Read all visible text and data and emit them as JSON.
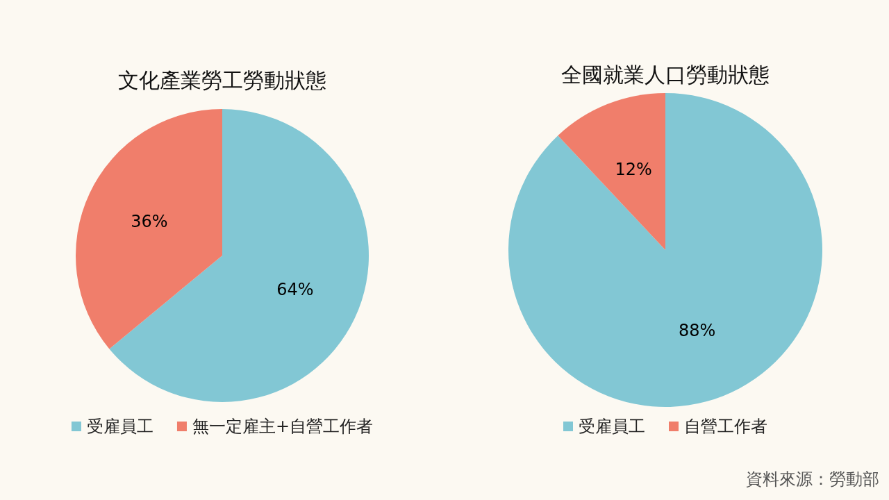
{
  "chart_data": [
    {
      "type": "pie",
      "title": "文化產業勞工勞動狀態",
      "categories": [
        "受雇員工",
        "無一定雇主+自營工作者"
      ],
      "values": [
        64,
        36
      ],
      "value_labels": [
        "64%",
        "36%"
      ],
      "colors": [
        "#82c7d4",
        "#f07e6b"
      ],
      "legend": "bottom"
    },
    {
      "type": "pie",
      "title": "全國就業人口勞動狀態",
      "categories": [
        "受雇員工",
        "自營工作者"
      ],
      "values": [
        88,
        12
      ],
      "value_labels": [
        "88%",
        "12%"
      ],
      "colors": [
        "#82c7d4",
        "#f07e6b"
      ],
      "legend": "bottom",
      "annotations": [
        "資料來源：勞動部"
      ]
    }
  ]
}
